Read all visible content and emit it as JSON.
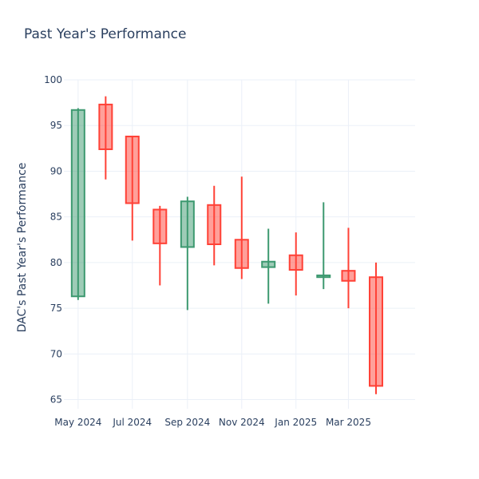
{
  "chart_data": {
    "type": "candlestick",
    "title": "Past Year's Performance",
    "xlabel": "",
    "ylabel": "DAC's Past Year's Performance",
    "ylim": [
      64,
      100
    ],
    "y_ticks": [
      65,
      70,
      75,
      80,
      85,
      90,
      95,
      100
    ],
    "x_ticks": [
      {
        "date": "2024-05-01",
        "label": "May 2024"
      },
      {
        "date": "2024-07-01",
        "label": "Jul 2024"
      },
      {
        "date": "2024-09-01",
        "label": "Sep 2024"
      },
      {
        "date": "2024-11-01",
        "label": "Nov 2024"
      },
      {
        "date": "2025-01-01",
        "label": "Jan 2025"
      },
      {
        "date": "2025-03-01",
        "label": "Mar 2025"
      }
    ],
    "x_range": [
      "2024-04-15",
      "2025-05-15"
    ],
    "grid": true,
    "colors": {
      "increasing_line": "#3d9970",
      "increasing_fill": "rgba(61,153,112,0.5)",
      "decreasing_line": "#ff4136",
      "decreasing_fill": "rgba(255,65,54,0.5)",
      "grid": "#ebf0f8",
      "text": "#2a3f5f"
    },
    "candles": [
      {
        "date": "2024-05-01",
        "open": 76.3,
        "high": 96.9,
        "low": 75.9,
        "close": 96.7
      },
      {
        "date": "2024-06-01",
        "open": 97.3,
        "high": 98.2,
        "low": 89.1,
        "close": 92.4
      },
      {
        "date": "2024-07-01",
        "open": 93.8,
        "high": 93.8,
        "low": 82.4,
        "close": 86.5
      },
      {
        "date": "2024-08-01",
        "open": 85.8,
        "high": 86.2,
        "low": 77.5,
        "close": 82.1
      },
      {
        "date": "2024-09-01",
        "open": 81.7,
        "high": 87.2,
        "low": 74.8,
        "close": 86.7
      },
      {
        "date": "2024-10-01",
        "open": 86.3,
        "high": 88.4,
        "low": 79.7,
        "close": 82.0
      },
      {
        "date": "2024-11-01",
        "open": 82.5,
        "high": 89.4,
        "low": 78.2,
        "close": 79.4
      },
      {
        "date": "2024-12-01",
        "open": 79.5,
        "high": 83.7,
        "low": 75.5,
        "close": 80.1
      },
      {
        "date": "2025-01-01",
        "open": 80.8,
        "high": 83.3,
        "low": 76.4,
        "close": 79.2
      },
      {
        "date": "2025-02-01",
        "open": 78.4,
        "high": 86.6,
        "low": 77.1,
        "close": 78.6
      },
      {
        "date": "2025-03-01",
        "open": 79.1,
        "high": 83.8,
        "low": 75.0,
        "close": 78.0
      },
      {
        "date": "2025-04-01",
        "open": 78.4,
        "high": 80.0,
        "low": 65.6,
        "close": 66.5
      }
    ]
  }
}
